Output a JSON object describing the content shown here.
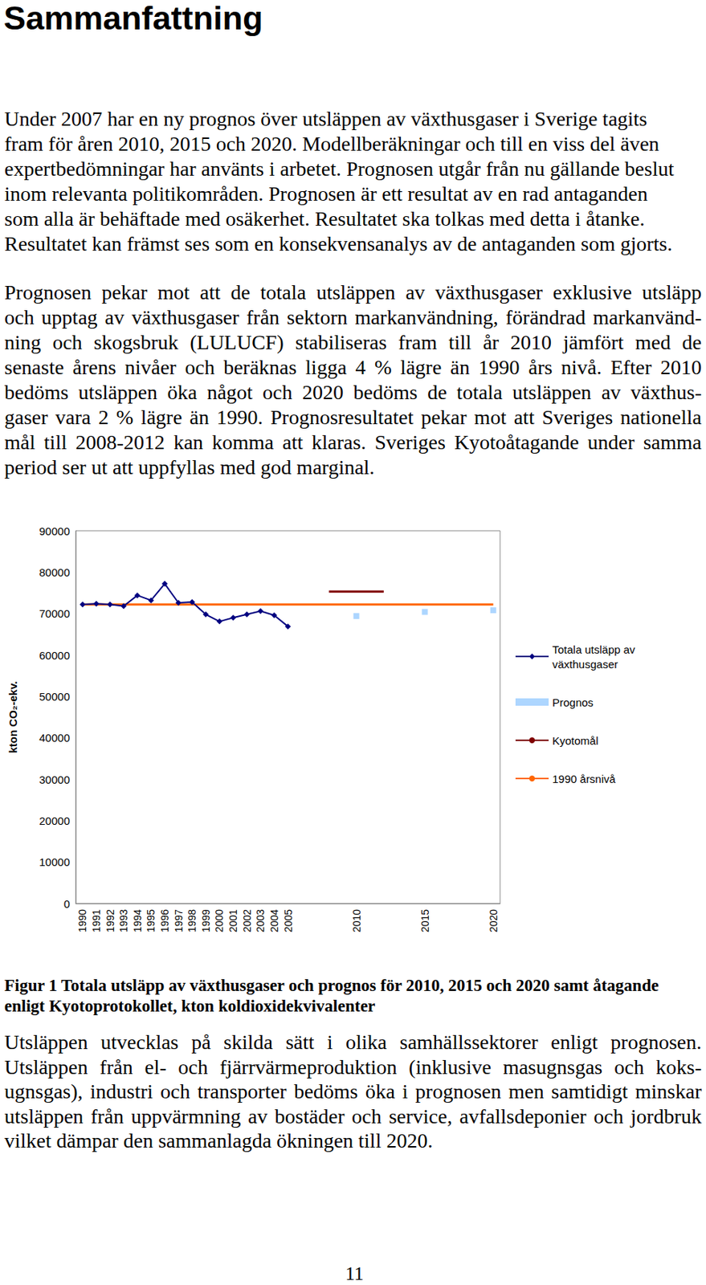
{
  "heading": "Sammanfattning",
  "paragraphs": [
    [
      "Under 2007 har en ny prognos över utsläppen av växthusgaser i Sverige tagits",
      "fram för åren 2010, 2015 och 2020. Modellberäkningar och till en viss del även",
      "expertbedömningar har använts i arbetet. Prognosen utgår från nu gällande beslut",
      "inom relevanta politikområden. Prognosen är ett resultat av en rad antaganden",
      "som alla är behäftade med osäkerhet. Resultatet ska tolkas med detta i åtanke.",
      "Resultatet kan främst ses som en konsekvensanalys av de antaganden som gjorts."
    ],
    [
      "Prognosen pekar mot att de totala utsläppen av växthusgaser exklusive utsläpp",
      "och upptag av växthusgaser från sektorn markanvändning, förändrad markanvänd-",
      "ning och skogsbruk (LULUCF) stabiliseras fram till år 2010 jämfört med de",
      "senaste årens nivåer och beräknas ligga 4 % lägre än 1990 års nivå. Efter 2010",
      "bedöms utsläppen öka något och 2020 bedöms de totala utsläppen av växthus-",
      "gaser vara 2 % lägre än 1990. Prognosresultatet pekar mot att Sveriges nationella",
      "mål till 2008-2012 kan komma att klaras. Sveriges Kyotoåtagande under samma",
      "period ser ut att uppfyllas med god marginal."
    ]
  ],
  "chart_data": {
    "type": "line",
    "y_label": "kton CO₂-ekv.",
    "categories": [
      "1990",
      "1991",
      "1992",
      "1993",
      "1994",
      "1995",
      "1996",
      "1997",
      "1998",
      "1999",
      "2000",
      "2001",
      "2002",
      "2003",
      "2004",
      "2005",
      null,
      null,
      null,
      null,
      "2010",
      null,
      null,
      null,
      null,
      "2015",
      null,
      null,
      null,
      null,
      "2020"
    ],
    "ylim": [
      0,
      90000
    ],
    "yticks": [
      0,
      10000,
      20000,
      30000,
      40000,
      50000,
      60000,
      70000,
      80000,
      90000
    ],
    "grid": false,
    "legend": "right",
    "series": [
      {
        "name": "Totala utsläpp av växthusgaser",
        "type": "line",
        "color": "#000080",
        "marker": "diamond",
        "line_style": "solid",
        "values": [
          72200,
          72400,
          72200,
          71800,
          74400,
          73200,
          77200,
          72600,
          72800,
          69800,
          68100,
          69000,
          69800,
          70600,
          69600,
          66900,
          null,
          null,
          null,
          null,
          null,
          null,
          null,
          null,
          null,
          null,
          null,
          null,
          null,
          null,
          null
        ]
      },
      {
        "name": "Prognos",
        "type": "scatter",
        "color": "#99ccff",
        "marker": "square",
        "values": [
          null,
          null,
          null,
          null,
          null,
          null,
          null,
          null,
          null,
          null,
          null,
          null,
          null,
          null,
          null,
          null,
          null,
          null,
          null,
          null,
          69400,
          null,
          null,
          null,
          null,
          70400,
          null,
          null,
          null,
          null,
          70800
        ]
      },
      {
        "name": "Kyotomål",
        "type": "line",
        "color": "#800000",
        "marker": "none",
        "line_style": "solid",
        "values": [
          null,
          null,
          null,
          null,
          null,
          null,
          null,
          null,
          null,
          null,
          null,
          null,
          null,
          null,
          null,
          null,
          null,
          null,
          75300,
          75300,
          75300,
          75300,
          75300,
          null,
          null,
          null,
          null,
          null,
          null,
          null,
          null
        ]
      },
      {
        "name": "1990 årsnivå",
        "type": "line",
        "color": "#ff6600",
        "marker": "none",
        "line_style": "solid",
        "values": [
          72200,
          72200,
          72200,
          72200,
          72200,
          72200,
          72200,
          72200,
          72200,
          72200,
          72200,
          72200,
          72200,
          72200,
          72200,
          72200,
          72200,
          72200,
          72200,
          72200,
          72200,
          72200,
          72200,
          72200,
          72200,
          72200,
          72200,
          72200,
          72200,
          72200,
          72200
        ]
      }
    ]
  },
  "caption": [
    "Figur 1 Totala utsläpp av växthusgaser och prognos för 2010, 2015 och 2020 samt åtagande",
    "enligt Kyotoprotokollet, kton koldioxidekvivalenter"
  ],
  "paragraphs_after": [
    [
      "Utsläppen utvecklas på skilda sätt i olika samhällssektorer enligt prognosen.",
      "Utsläppen från el- och fjärrvärmeproduktion (inklusive masugnsgas och koks-",
      "ugnsgas), industri och transporter bedöms öka i prognosen men samtidigt minskar",
      "utsläppen från uppvärmning av bostäder och service, avfallsdeponier och jordbruk",
      "vilket dämpar den sammanlagda ökningen till 2020."
    ]
  ],
  "page_number": "11"
}
